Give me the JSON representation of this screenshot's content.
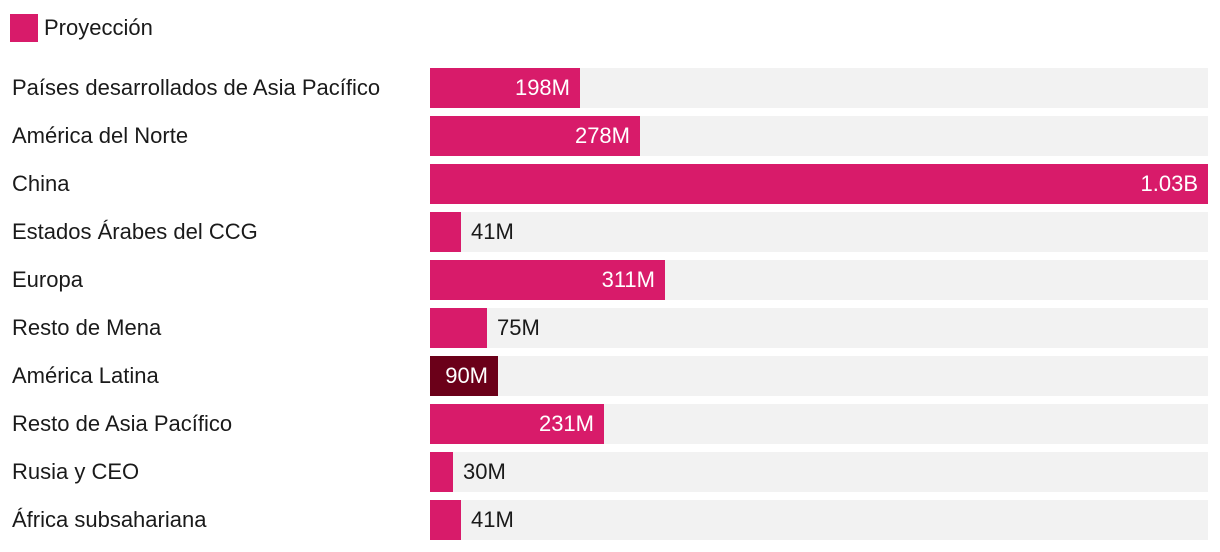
{
  "legend": {
    "label": "Proyección",
    "color": "#d81b6a"
  },
  "colors": {
    "bar": "#d81b6a",
    "highlight": "#6b0019",
    "track": "#f2f2f2"
  },
  "chart_data": {
    "type": "bar",
    "orientation": "horizontal",
    "categories": [
      "Países desarrollados de Asia Pacífico",
      "América del Norte",
      "China",
      "Estados Árabes del CCG",
      "Europa",
      "Resto de Mena",
      "América Latina",
      "Resto de Asia Pacífico",
      "Rusia y CEO",
      "África subsahariana"
    ],
    "series": [
      {
        "name": "Proyección",
        "values": [
          198000000,
          278000000,
          1030000000,
          41000000,
          311000000,
          75000000,
          90000000,
          231000000,
          30000000,
          41000000
        ],
        "labels": [
          "198M",
          "278M",
          "1.03B",
          "41M",
          "311M",
          "75M",
          "90M",
          "231M",
          "30M",
          "41M"
        ]
      }
    ],
    "highlighted_category": "América Latina",
    "xlim": [
      0,
      1030000000
    ],
    "legend_position": "top-left",
    "grid": false
  }
}
